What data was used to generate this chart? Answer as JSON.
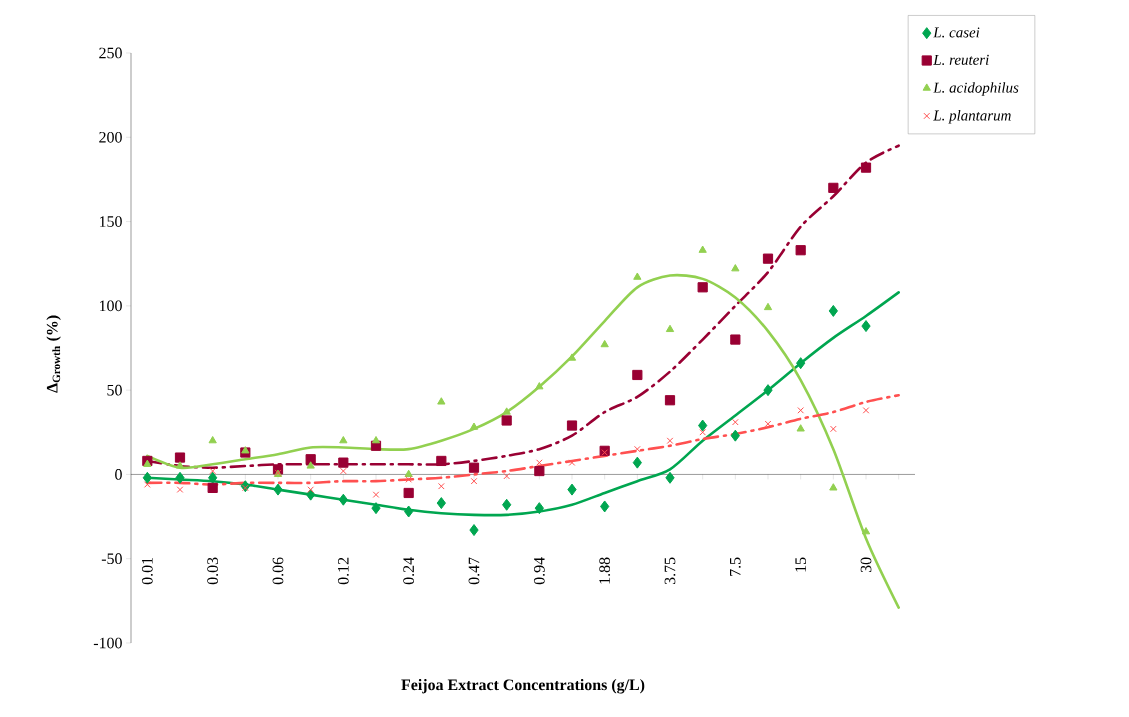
{
  "chart_data": {
    "type": "scatter",
    "xlabel": "Feijoa Extract Concentrations (g/L)",
    "ylabel": "Δ$_{Growth}$ (%)",
    "categories": [
      "0.01",
      null,
      "0.03",
      null,
      "0.06",
      null,
      "0.12",
      null,
      "0.24",
      null,
      "0.47",
      null,
      "0.94",
      null,
      "1.88",
      null,
      "3.75",
      null,
      "7.5",
      null,
      "15",
      null,
      "30",
      null
    ],
    "ylim": [
      -100,
      250
    ],
    "yticks": [
      -100,
      -50,
      0,
      50,
      100,
      150,
      200,
      250
    ],
    "legend": "top right",
    "series": [
      {
        "name": "L. casei",
        "marker": "diamond",
        "color": "#00a650",
        "values": [
          -2,
          -2,
          -2,
          -7,
          -9,
          -12,
          -15,
          -20,
          -22,
          -17,
          -33,
          -18,
          -20,
          -9,
          -19,
          7,
          -2,
          29,
          23,
          50,
          66,
          97,
          88,
          null
        ]
      },
      {
        "name": "L. reuteri",
        "marker": "square",
        "color": "#990033",
        "values": [
          8,
          10,
          -8,
          13,
          3,
          9,
          7,
          17,
          -11,
          8,
          4,
          32,
          2,
          29,
          14,
          59,
          44,
          111,
          80,
          128,
          133,
          170,
          182,
          null
        ]
      },
      {
        "name": "L. acidophilus",
        "marker": "triangle",
        "color": "#92d050",
        "values": [
          6,
          5,
          20,
          14,
          0,
          5,
          20,
          20,
          0,
          43,
          28,
          37,
          52,
          69,
          77,
          117,
          86,
          133,
          122,
          99,
          27,
          -8,
          -34,
          null
        ]
      },
      {
        "name": "L. plantarum",
        "marker": "cross",
        "color": "#ff5050",
        "values": [
          -6,
          -9,
          2,
          -8,
          1,
          -9,
          2,
          -12,
          -3,
          -7,
          -4,
          -1,
          7,
          7,
          13,
          15,
          20,
          25,
          31,
          30,
          38,
          27,
          38,
          null
        ]
      },
      {
        "type": "line",
        "marker": "none",
        "line_style": "solid",
        "color": "#00a650",
        "values": [
          -2,
          -3,
          -4,
          -6,
          -9,
          -12,
          -15,
          -18,
          -21,
          -23,
          -24,
          -24,
          -22,
          -18,
          -11,
          -4,
          3,
          20,
          35,
          50,
          66,
          81,
          94,
          108
        ]
      },
      {
        "type": "line",
        "marker": "none",
        "line_style": "dashdot",
        "color": "#990033",
        "values": [
          8,
          5,
          4,
          5,
          6,
          6,
          6,
          6,
          6,
          6,
          8,
          11,
          15,
          23,
          37,
          46,
          61,
          80,
          100,
          120,
          147,
          165,
          185,
          195
        ]
      },
      {
        "type": "line",
        "marker": "none",
        "line_style": "solid",
        "color": "#92d050",
        "values": [
          11,
          4,
          6,
          9,
          12,
          16,
          16,
          15,
          15,
          20,
          27,
          37,
          52,
          70,
          91,
          111,
          118,
          116,
          105,
          85,
          56,
          15,
          -38,
          -79
        ]
      },
      {
        "type": "line",
        "marker": "none",
        "line_style": "dashdot",
        "color": "#ff5050",
        "values": [
          -5,
          -5,
          -6,
          -5,
          -5,
          -5,
          -4,
          -4,
          -3,
          -2,
          0,
          2,
          5,
          8,
          11,
          14,
          17,
          21,
          24,
          28,
          33,
          37,
          43,
          47
        ]
      }
    ]
  }
}
